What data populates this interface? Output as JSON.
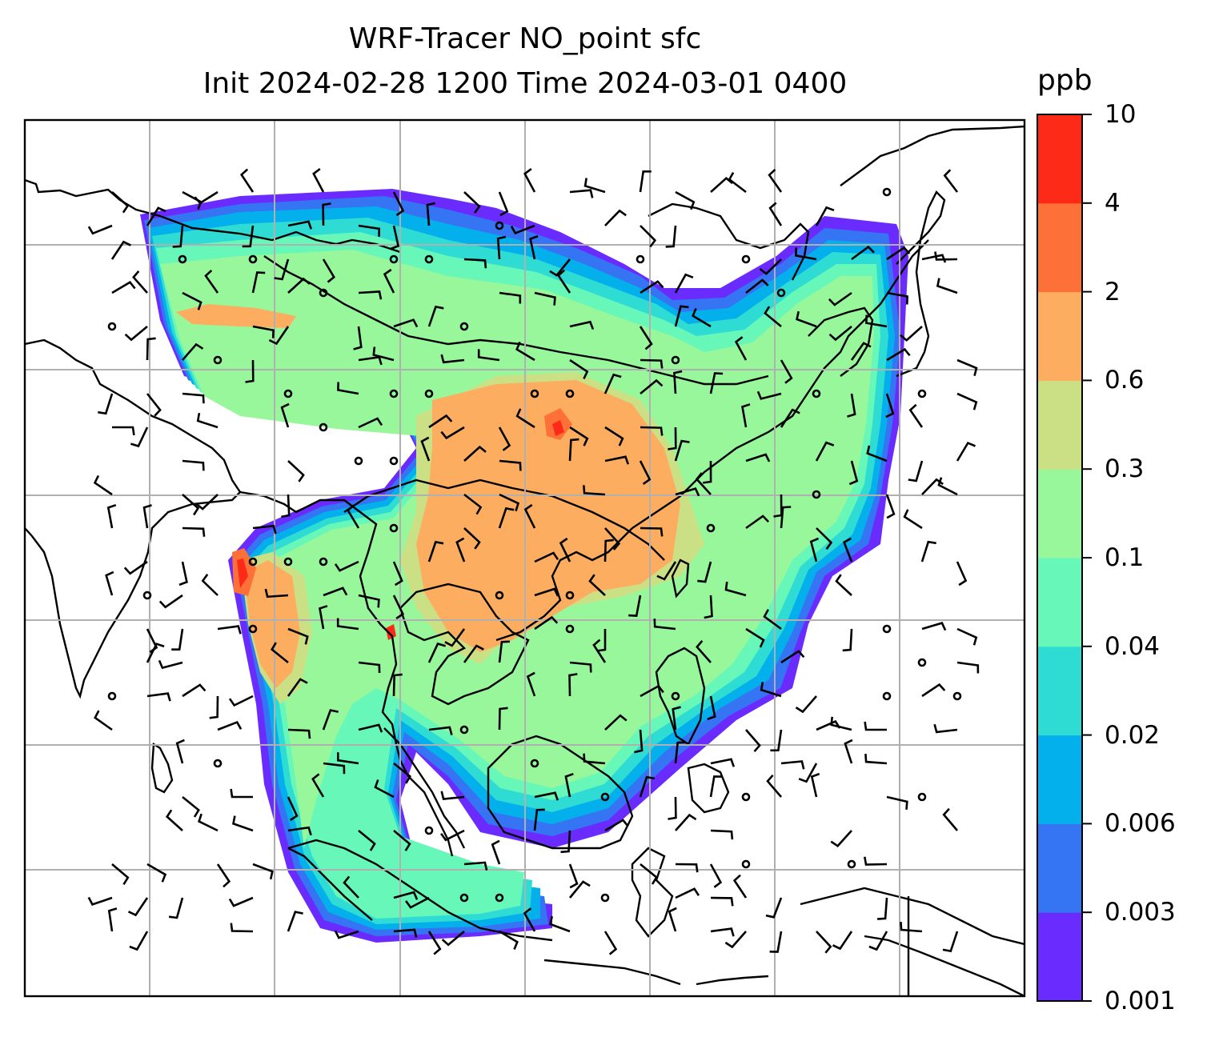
{
  "title": {
    "line1": "WRF-Tracer NO_point sfc",
    "line2": "Init 2024-02-28 1200 Time 2024-03-01 0400"
  },
  "colorbar": {
    "unit": "ppb",
    "tick_labels": [
      "0.001",
      "0.003",
      "0.006",
      "0.02",
      "0.04",
      "0.1",
      "0.3",
      "0.6",
      "2",
      "4",
      "10"
    ],
    "colors": [
      "#6a2bff",
      "#3574f2",
      "#04b0eb",
      "#2fdcd4",
      "#66f7b9",
      "#97f79a",
      "#cbe085",
      "#fdad5f",
      "#fd7037",
      "#fd2a17"
    ]
  },
  "map": {
    "field": "NO_point",
    "level": "sfc",
    "gridlines": true,
    "coastlines_color": "#000000",
    "gridline_color": "#b0b0b0"
  }
}
